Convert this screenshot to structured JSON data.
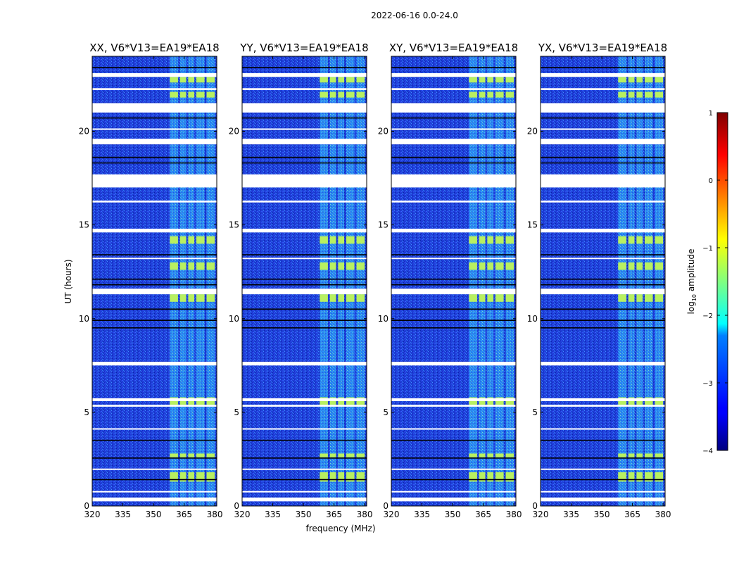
{
  "figure": {
    "suptitle": "2022-06-16 0.0-24.0",
    "xlabel": "frequency (MHz)",
    "ylabel": "UT (hours)"
  },
  "chart_data": {
    "type": "heatmap",
    "xlim": [
      320,
      381
    ],
    "ylim": [
      0,
      24
    ],
    "xticks": [
      320,
      335,
      350,
      365,
      380
    ],
    "yticks": [
      0,
      5,
      10,
      15,
      20
    ],
    "panels": [
      {
        "title": "XX, V6*V13=EA19*EA18",
        "show_yticks": true
      },
      {
        "title": "YY, V6*V13=EA19*EA18",
        "show_yticks": true
      },
      {
        "title": "XY, V6*V13=EA19*EA18",
        "show_yticks": true
      },
      {
        "title": "YX, V6*V13=EA19*EA18",
        "show_yticks": true
      }
    ],
    "rfi_band_mhz": [
      [
        358,
        362
      ],
      [
        363,
        366
      ],
      [
        367,
        370
      ],
      [
        371,
        375
      ],
      [
        376,
        380
      ]
    ],
    "rfi_bright_hours": [
      [
        1.3,
        1.8
      ],
      [
        2.6,
        2.8
      ],
      [
        5.4,
        5.8
      ],
      [
        10.9,
        11.3
      ],
      [
        12.6,
        13.0
      ],
      [
        14.0,
        14.4
      ],
      [
        21.8,
        22.1
      ],
      [
        22.6,
        22.9
      ]
    ],
    "blank_hours": [
      [
        0.25,
        0.45
      ],
      [
        0.75,
        0.8
      ],
      [
        1.95,
        2.0
      ],
      [
        4.1,
        4.15
      ],
      [
        5.3,
        5.4
      ],
      [
        5.6,
        5.75
      ],
      [
        7.5,
        7.7
      ],
      [
        11.3,
        11.6
      ],
      [
        13.2,
        13.25
      ],
      [
        14.6,
        14.8
      ],
      [
        16.2,
        16.3
      ],
      [
        17.0,
        17.7
      ],
      [
        19.3,
        19.6
      ],
      [
        20.1,
        20.15
      ],
      [
        21.0,
        21.5
      ],
      [
        22.2,
        22.3
      ],
      [
        22.9,
        23.1
      ]
    ],
    "dark_lines_hours": [
      [
        0.35
      ],
      [
        1.4
      ],
      [
        2.55
      ],
      [
        3.5
      ],
      [
        9.5
      ],
      [
        9.9
      ],
      [
        10.5
      ],
      [
        11.8
      ],
      [
        12.1
      ],
      [
        13.4
      ],
      [
        18.3
      ],
      [
        18.6
      ],
      [
        20.7
      ],
      [
        23.4
      ]
    ],
    "colorbar": {
      "label": "log10 amplitude",
      "label_base": "log",
      "label_sub": "10",
      "label_rest": " amplitude",
      "min": -4,
      "max": 1,
      "ticks": [
        "1",
        "0",
        "−1",
        "−2",
        "−3",
        "−4"
      ]
    }
  }
}
